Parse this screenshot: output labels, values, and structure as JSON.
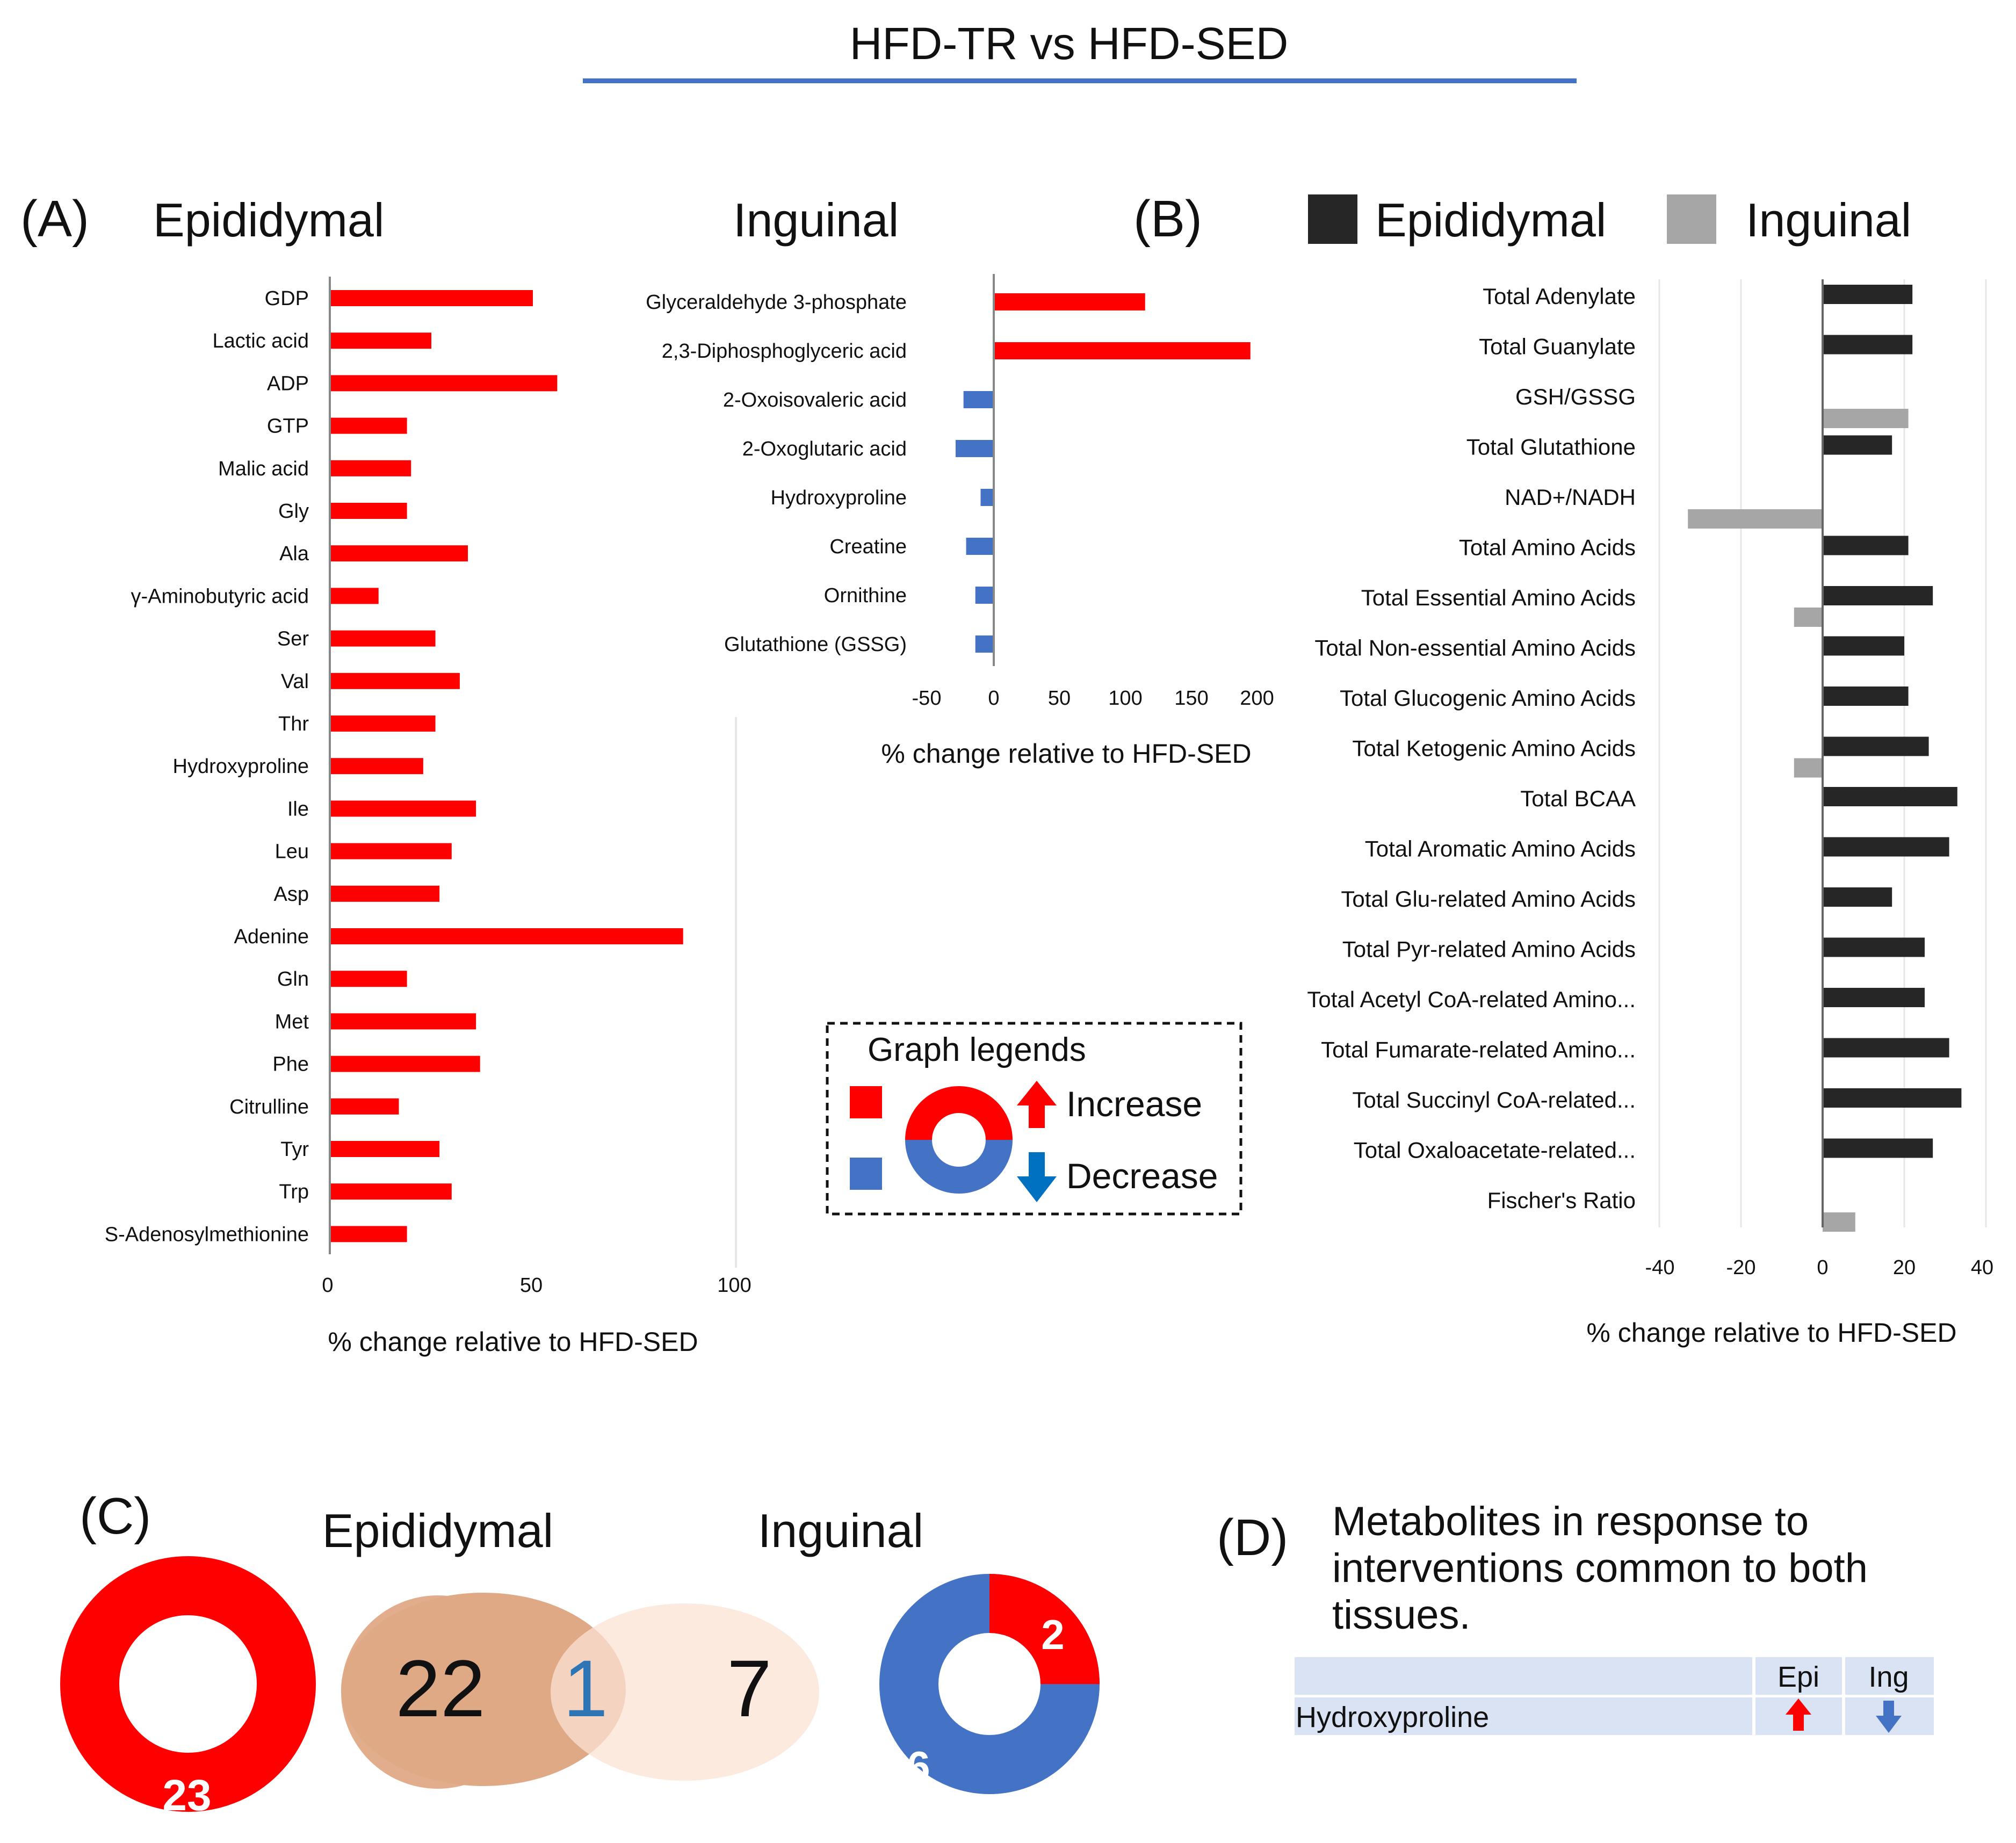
{
  "figure": {
    "title": "HFD-TR vs HFD-SED",
    "colors": {
      "increase": "#ff0000",
      "decrease": "#4472c4",
      "epididymal": "#262626",
      "inguinal": "#a6a6a6",
      "venn_epi": "#e0a986",
      "venn_ing": "#fbe3d3",
      "title_rule": "#4472c4",
      "table_bg": "#dae3f3"
    }
  },
  "panel_a": {
    "label": "(A)",
    "epididymal_chart": {
      "tissue_label": "Epididymal",
      "chart_data": {
        "type": "bar",
        "orientation": "horizontal",
        "categories": [
          "GDP",
          "Lactic acid",
          "ADP",
          "GTP",
          "Malic acid",
          "Gly",
          "Ala",
          "γ-Aminobutyric acid",
          "Ser",
          "Val",
          "Thr",
          "Hydroxyproline",
          "Ile",
          "Leu",
          "Asp",
          "Adenine",
          "Gln",
          "Met",
          "Phe",
          "Citrulline",
          "Tyr",
          "Trp",
          "S-Adenosylmethionine"
        ],
        "values": [
          50,
          25,
          56,
          19,
          20,
          19,
          34,
          12,
          26,
          32,
          26,
          23,
          36,
          30,
          27,
          87,
          19,
          36,
          37,
          17,
          27,
          30,
          19
        ],
        "xlim": [
          0,
          100
        ],
        "xticks": [
          "0",
          "50",
          "100"
        ],
        "xlabel": "% change relative to HFD-SED"
      }
    },
    "inguinal_chart": {
      "tissue_label": "Inguinal",
      "chart_data": {
        "type": "bar",
        "orientation": "horizontal",
        "categories": [
          "Glyceraldehyde 3-phosphate",
          "2,3-Diphosphoglyceric acid",
          "2-Oxoisovaleric acid",
          "2-Oxoglutaric acid",
          "Hydroxyproline",
          "Creatine",
          "Ornithine",
          "Glutathione (GSSG)"
        ],
        "values": [
          115,
          195,
          -23,
          -29,
          -10,
          -21,
          -14,
          -14
        ],
        "xlim": [
          -50,
          200
        ],
        "xticks": [
          "-50",
          "0",
          "50",
          "100",
          "150",
          "200"
        ],
        "xlabel": "% change relative to HFD-SED"
      }
    },
    "legend": {
      "title": "Graph legends",
      "increase": "Increase",
      "decrease": "Decrease"
    }
  },
  "panel_b": {
    "label": "(B)",
    "chart_data": {
      "type": "bar",
      "orientation": "horizontal",
      "legend": [
        "Epididymal",
        "Inguinal"
      ],
      "categories": [
        "Total Adenylate",
        "Total Guanylate",
        "GSH/GSSG",
        "Total Glutathione",
        "NAD+/NADH",
        "Total Amino Acids",
        "Total Essential Amino Acids",
        "Total Non-essential Amino Acids",
        "Total Glucogenic Amino Acids",
        "Total Ketogenic Amino Acids",
        "Total BCAA",
        "Total Aromatic Amino Acids",
        "Total Glu-related Amino Acids",
        "Total Pyr-related Amino Acids",
        "Total Acetyl CoA-related Amino...",
        "Total Fumarate-related Amino...",
        "Total Succinyl CoA-related...",
        "Total Oxaloacetate-related...",
        "Fischer's Ratio"
      ],
      "series": [
        {
          "name": "Epididymal",
          "values": [
            22,
            22,
            null,
            17,
            null,
            21,
            27,
            20,
            21,
            26,
            33,
            31,
            17,
            25,
            25,
            31,
            34,
            27,
            null
          ]
        },
        {
          "name": "Inguinal",
          "values": [
            null,
            null,
            21,
            null,
            -33,
            null,
            -7,
            null,
            null,
            -7,
            null,
            null,
            null,
            null,
            null,
            null,
            null,
            null,
            8
          ]
        }
      ],
      "xlim": [
        -40,
        40
      ],
      "xticks": [
        "-40",
        "-20",
        "0",
        "20",
        "40"
      ],
      "xlabel": "% change relative to HFD-SED"
    }
  },
  "panel_c": {
    "label": "(C)",
    "epididymal_label": "Epididymal",
    "inguinal_label": "Inguinal",
    "epi_donut": {
      "increase": 23,
      "decrease": 0,
      "increase_label": "23"
    },
    "venn": {
      "epi_only": "22",
      "shared": "1",
      "ing_only": "7"
    },
    "ing_donut": {
      "increase": 2,
      "decrease": 6,
      "increase_label": "2",
      "decrease_label": "6"
    }
  },
  "panel_d": {
    "label": "(D)",
    "title_lines": [
      "Metabolites in response to",
      "interventions common to both",
      "tissues."
    ],
    "columns": [
      "Epi",
      "Ing"
    ],
    "rows": [
      {
        "name": "Hydroxyproline",
        "epi": "up",
        "ing": "down"
      }
    ]
  }
}
